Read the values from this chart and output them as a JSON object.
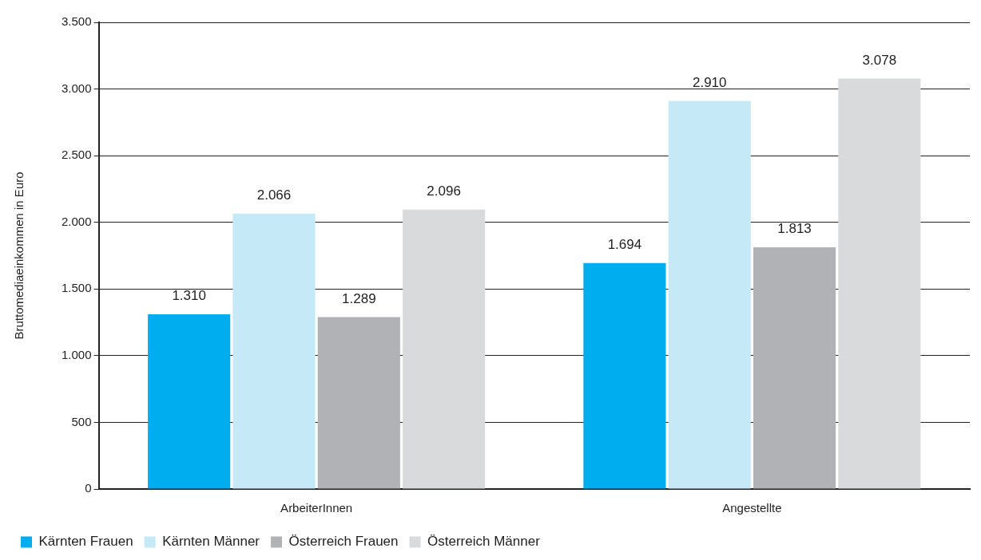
{
  "chart_data": {
    "type": "bar",
    "ylabel": "Bruttomediaeinkommen in Euro",
    "categories": [
      "ArbeiterInnen",
      "Angestellte"
    ],
    "series": [
      {
        "name": "Kärnten Frauen",
        "color": "#00adef",
        "values": [
          1310,
          1694
        ],
        "value_labels": [
          "1.310",
          "1.694"
        ]
      },
      {
        "name": "Kärnten Männer",
        "color": "#c6e9f8",
        "values": [
          2066,
          2910
        ],
        "value_labels": [
          "2.066",
          "2.910"
        ]
      },
      {
        "name": "Österreich Frauen",
        "color": "#b1b2b5",
        "values": [
          1289,
          1813
        ],
        "value_labels": [
          "1.289",
          "1.813"
        ]
      },
      {
        "name": "Österreich Männer",
        "color": "#d9dadc",
        "values": [
          2096,
          3078
        ],
        "value_labels": [
          "2.096",
          "3.078"
        ]
      }
    ],
    "ylim": [
      0,
      3500
    ],
    "yticks": [
      0,
      {
        "value": 500,
        "label": "500"
      },
      {
        "value": 1000,
        "label": "1.000"
      },
      {
        "value": 1500,
        "label": "1.500"
      },
      {
        "value": 2000,
        "label": "2.000"
      },
      {
        "value": 2500,
        "label": "2.500"
      },
      {
        "value": 3000,
        "label": "3.000"
      },
      {
        "value": 3500,
        "label": "3.500"
      }
    ],
    "grid": "y",
    "legend": "bottom left"
  }
}
